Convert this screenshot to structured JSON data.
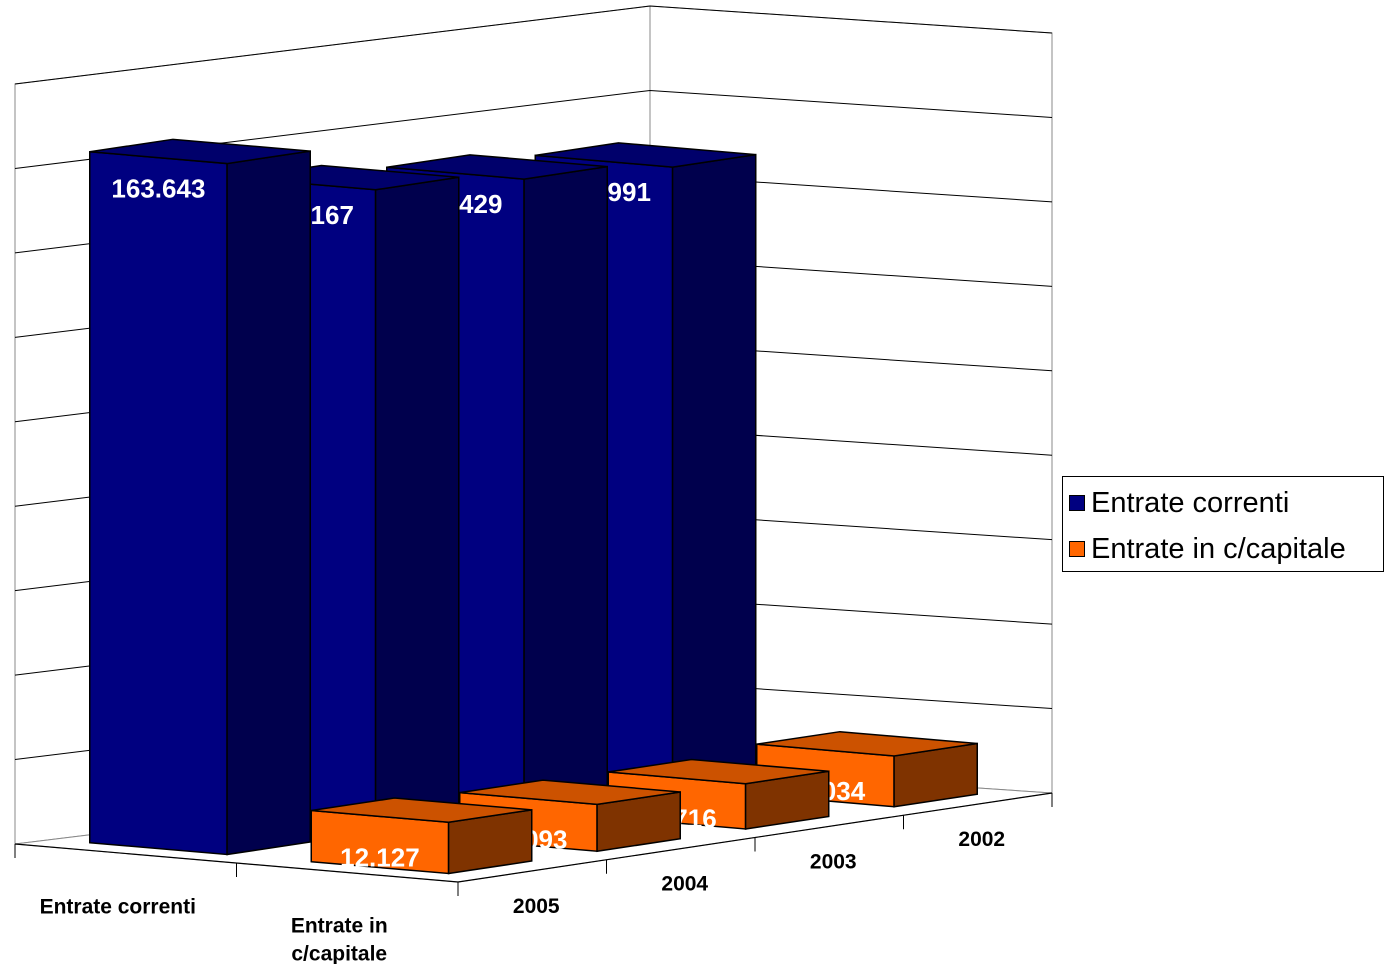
{
  "chart_data": {
    "type": "bar",
    "subtype": "3d-bar",
    "x_categories": [
      "2005",
      "2004",
      "2003",
      "2002"
    ],
    "z_categories": [
      "Entrate correnti",
      "Entrate in c/capitale"
    ],
    "series": [
      {
        "name": "Entrate correnti",
        "values": [
          163643,
          152167,
          149429,
          146991
        ],
        "labels": [
          "163.643",
          "152.167",
          "149.429",
          "146.991"
        ]
      },
      {
        "name": "Entrate in c/capitale",
        "values": [
          12127,
          11093,
          10716,
          12034
        ],
        "labels": [
          "12.127",
          "11.093",
          "10.716",
          "12.034"
        ]
      }
    ],
    "ylim": [
      0,
      180000
    ],
    "grid": true,
    "legend": "right"
  },
  "colors": {
    "series1_front": "#000080",
    "series1_side": "#00004d",
    "series1_top": "#00006b",
    "series2_front": "#ff6600",
    "series2_side": "#7f3300",
    "series2_top": "#cc5200",
    "outline": "#000000",
    "gridline": "#000000",
    "label_text": "#ffffff"
  },
  "legend": {
    "items": [
      {
        "label": "Entrate correnti",
        "color": "#000080"
      },
      {
        "label": "Entrate in c/capitale",
        "color": "#ff6600"
      }
    ]
  }
}
